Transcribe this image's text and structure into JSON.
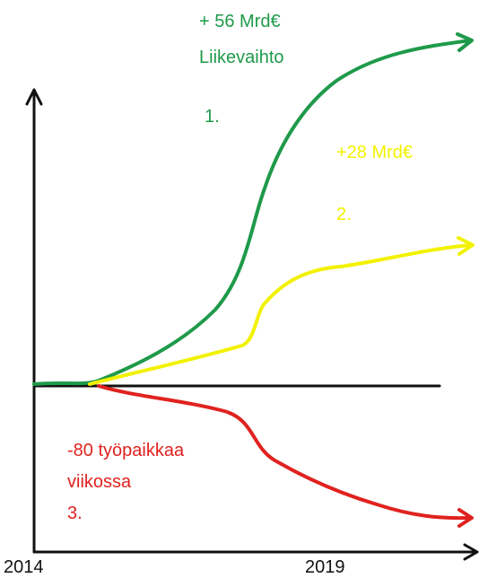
{
  "curves": [
    {
      "label": "+ 56 Mrd€",
      "caption": "Liikevaihto",
      "number": "1."
    },
    {
      "label": "+28 Mrd€",
      "number": "2."
    },
    {
      "label": "-80 työpaikkaa",
      "caption": "viikossa",
      "number": "3."
    }
  ],
  "x_labels": [
    "2014",
    "2019"
  ]
}
